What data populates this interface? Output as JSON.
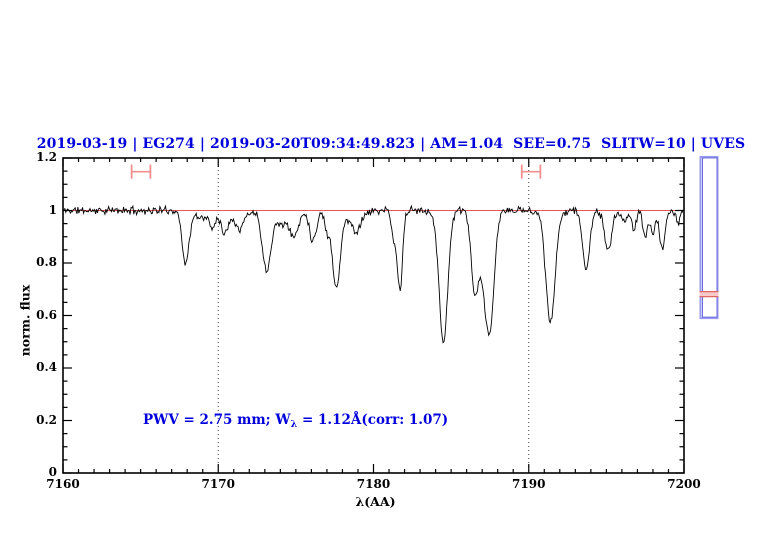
{
  "window": {
    "background": "#ffffff"
  },
  "chart_data": {
    "type": "line",
    "title": "2019-03-19 | EG274 | 2019-03-20T09:34:49.823 | AM=1.04  SEE=0.75  SLITW=10 | UVES",
    "xlabel": "λ(AA)",
    "ylabel": "norm. flux",
    "annotation": {
      "pre": "PWV = 2.75 mm; W",
      "sub": "λ",
      "post": " = 1.12Å(corr: 1.07)"
    },
    "xlim": [
      7160,
      7200
    ],
    "ylim": [
      0,
      1.2
    ],
    "x_major_ticks": [
      7160,
      7170,
      7180,
      7190,
      7200
    ],
    "x_tick_labels": [
      "7160",
      "7170",
      "7180",
      "7190",
      "7200"
    ],
    "x_minor_step": 1,
    "y_major_ticks": [
      0,
      0.2,
      0.4,
      0.6,
      0.8,
      1,
      1.2
    ],
    "y_tick_labels": [
      "0",
      "0.2",
      "0.4",
      "0.6",
      "0.8",
      "1",
      "1.2"
    ],
    "y_minor_step": 0.05,
    "grid": false,
    "legend": null,
    "continuum_level": 1.0,
    "dotted_guides_x": [
      7170,
      7190
    ],
    "pwv_markers": [
      {
        "x1": 7164.42,
        "x2": 7165.63,
        "y": 1.148,
        "cap_halfheight": 0.027
      },
      {
        "x1": 7189.55,
        "x2": 7190.75,
        "y": 1.148,
        "cap_halfheight": 0.027
      }
    ],
    "absorption_features": [
      [
        7167.9,
        0.8,
        0.22
      ],
      [
        7168.8,
        0.975,
        0.4
      ],
      [
        7169.6,
        0.945,
        0.18
      ],
      [
        7170.4,
        0.93,
        0.18
      ],
      [
        7170.8,
        0.975,
        0.9
      ],
      [
        7171.4,
        0.95,
        0.22
      ],
      [
        7173.1,
        0.78,
        0.26
      ],
      [
        7174.0,
        0.95,
        0.5
      ],
      [
        7174.9,
        0.91,
        0.28
      ],
      [
        7176.1,
        0.885,
        0.22
      ],
      [
        7177.0,
        0.93,
        0.15
      ],
      [
        7177.6,
        0.72,
        0.25
      ],
      [
        7178.5,
        0.97,
        0.7
      ],
      [
        7178.9,
        0.945,
        0.25
      ],
      [
        7181.3,
        0.9,
        0.15
      ],
      [
        7181.7,
        0.7,
        0.17
      ],
      [
        7184.5,
        0.5,
        0.28
      ],
      [
        7186.5,
        0.74,
        0.22
      ],
      [
        7187.0,
        0.82,
        0.35
      ],
      [
        7187.5,
        0.59,
        0.28
      ],
      [
        7191.4,
        0.57,
        0.3
      ],
      [
        7193.7,
        0.77,
        0.22
      ],
      [
        7195.1,
        0.84,
        0.22
      ],
      [
        7196.2,
        0.965,
        0.3
      ],
      [
        7196.8,
        0.93,
        0.13
      ],
      [
        7197.5,
        0.9,
        0.15
      ],
      [
        7198.0,
        0.905,
        0.13
      ],
      [
        7198.6,
        0.855,
        0.18
      ],
      [
        7199.6,
        0.955,
        0.13
      ]
    ],
    "noise_amplitude": 0.018,
    "noise_seed": 11,
    "sample_step_A": 0.06,
    "side_panel": {
      "top_flux": 1.204,
      "bottom_flux": 0.59,
      "band_flux": [
        0.691,
        0.672
      ]
    },
    "colors": {
      "title_text": "#0000dd",
      "annotation_text": "#0000dd",
      "spectrum_line": "#000000",
      "continuum_line": "#e85555",
      "dotted_guide": "#3a3a3a",
      "pwv_marker": "#f2908f",
      "frame": "#000000",
      "side_panel_outer": "#9a9af0",
      "side_panel_inner": "#6b6be0",
      "side_band_line": "#e06565",
      "side_band_fill": "#f7c9c9"
    }
  }
}
